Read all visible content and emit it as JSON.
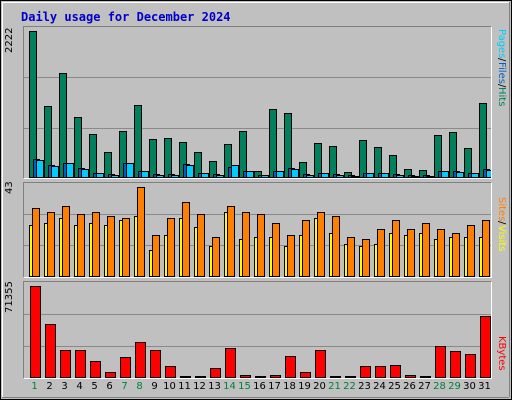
{
  "title": "Daily usage for December 2024",
  "axes": {
    "hits_max_label": "2222",
    "visits_max_label": "43",
    "kbytes_max_label": "71355"
  },
  "legends": {
    "hits": [
      {
        "text": "Pages",
        "color": "#00ccff"
      },
      {
        "text": " / ",
        "color": "#000000"
      },
      {
        "text": "Files",
        "color": "#0060c0"
      },
      {
        "text": " / ",
        "color": "#000000"
      },
      {
        "text": "Hits",
        "color": "#00805c"
      }
    ],
    "visits": [
      {
        "text": "Sites",
        "color": "#ff8000"
      },
      {
        "text": " / ",
        "color": "#000000"
      },
      {
        "text": "Visits",
        "color": "#ffff00"
      }
    ],
    "kbytes": [
      {
        "text": "KBytes",
        "color": "#ff0000"
      }
    ]
  },
  "colors": {
    "hits": "#00805c",
    "files": "#0060c0",
    "pages": "#00ccff",
    "sites": "#ff8000",
    "visits": "#ffff00",
    "kbytes": "#ff0000",
    "weekend_label": "#00803a"
  },
  "chart_data": [
    {
      "type": "bar",
      "title": "Daily usage for December 2024",
      "categories": [
        "1",
        "2",
        "3",
        "4",
        "5",
        "6",
        "7",
        "8",
        "9",
        "10",
        "11",
        "12",
        "13",
        "14",
        "15",
        "16",
        "17",
        "18",
        "19",
        "20",
        "21",
        "22",
        "23",
        "24",
        "25",
        "26",
        "27",
        "28",
        "29",
        "30",
        "31"
      ],
      "weekend_days": [
        "1",
        "7",
        "8",
        "14",
        "15",
        "21",
        "22",
        "28",
        "29"
      ],
      "ylim": [
        0,
        2222
      ],
      "series": [
        {
          "name": "Hits",
          "values": [
            2222,
            1090,
            1580,
            920,
            660,
            390,
            710,
            1110,
            590,
            600,
            550,
            390,
            260,
            520,
            710,
            110,
            1040,
            990,
            240,
            530,
            490,
            90,
            570,
            470,
            350,
            140,
            120,
            650,
            690,
            460,
            1130
          ]
        },
        {
          "name": "Files",
          "values": [
            290,
            200,
            230,
            150,
            80,
            60,
            230,
            110,
            60,
            60,
            210,
            80,
            60,
            160,
            110,
            50,
            110,
            150,
            60,
            80,
            60,
            40,
            80,
            80,
            60,
            40,
            40,
            110,
            100,
            80,
            130
          ]
        },
        {
          "name": "Pages",
          "values": [
            270,
            180,
            220,
            130,
            70,
            50,
            220,
            100,
            50,
            50,
            200,
            70,
            50,
            200,
            100,
            40,
            100,
            140,
            50,
            70,
            50,
            30,
            70,
            70,
            50,
            30,
            30,
            100,
            90,
            70,
            120
          ]
        }
      ]
    },
    {
      "type": "bar",
      "categories": [
        "1",
        "2",
        "3",
        "4",
        "5",
        "6",
        "7",
        "8",
        "9",
        "10",
        "11",
        "12",
        "13",
        "14",
        "15",
        "16",
        "17",
        "18",
        "19",
        "20",
        "21",
        "22",
        "23",
        "24",
        "25",
        "26",
        "27",
        "28",
        "29",
        "30",
        "31"
      ],
      "ylim": [
        0,
        43
      ],
      "series": [
        {
          "name": "Visits",
          "values": [
            25,
            26,
            28,
            25,
            26,
            25,
            27,
            29,
            13,
            20,
            28,
            24,
            15,
            31,
            18,
            19,
            19,
            15,
            20,
            28,
            21,
            16,
            15,
            16,
            21,
            20,
            21,
            18,
            19,
            19,
            19
          ]
        },
        {
          "name": "Sites",
          "values": [
            33,
            31,
            34,
            30,
            31,
            29,
            28,
            43,
            20,
            28,
            36,
            30,
            19,
            34,
            31,
            30,
            26,
            20,
            27,
            31,
            29,
            19,
            18,
            23,
            27,
            23,
            26,
            23,
            21,
            25,
            27
          ]
        }
      ]
    },
    {
      "type": "bar",
      "categories": [
        "1",
        "2",
        "3",
        "4",
        "5",
        "6",
        "7",
        "8",
        "9",
        "10",
        "11",
        "12",
        "13",
        "14",
        "15",
        "16",
        "17",
        "18",
        "19",
        "20",
        "21",
        "22",
        "23",
        "24",
        "25",
        "26",
        "27",
        "28",
        "29",
        "30",
        "31"
      ],
      "ylim": [
        0,
        71355
      ],
      "series": [
        {
          "name": "KBytes",
          "values": [
            71355,
            42000,
            22000,
            22000,
            13000,
            4500,
            16000,
            28000,
            22000,
            9000,
            1000,
            1000,
            8000,
            23000,
            2000,
            1500,
            2500,
            17000,
            5000,
            22000,
            1500,
            1000,
            9000,
            9000,
            10000,
            2000,
            1000,
            25000,
            21000,
            19000,
            48000
          ]
        }
      ]
    }
  ]
}
